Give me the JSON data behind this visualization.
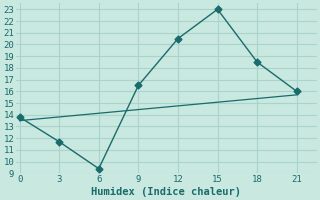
{
  "xlabel": "Humidex (Indice chaleur)",
  "bg_color": "#c8e8e0",
  "line1_x": [
    0,
    3,
    6,
    9,
    12,
    15,
    18,
    21
  ],
  "line1_y": [
    13.8,
    11.7,
    9.4,
    16.5,
    20.5,
    23,
    18.5,
    16
  ],
  "line2_x": [
    0,
    21
  ],
  "line2_y": [
    13.5,
    15.7
  ],
  "line_color": "#1a6b6b",
  "xlim": [
    -0.3,
    22.5
  ],
  "ylim": [
    9,
    23.5
  ],
  "xticks": [
    0,
    3,
    6,
    9,
    12,
    15,
    18,
    21
  ],
  "yticks": [
    9,
    10,
    11,
    12,
    13,
    14,
    15,
    16,
    17,
    18,
    19,
    20,
    21,
    22,
    23
  ],
  "grid_color": "#a8d4cc",
  "font_color": "#1a6b6b",
  "marker": "D",
  "markersize": 3.5,
  "tick_fontsize": 6.5,
  "xlabel_fontsize": 7.5
}
